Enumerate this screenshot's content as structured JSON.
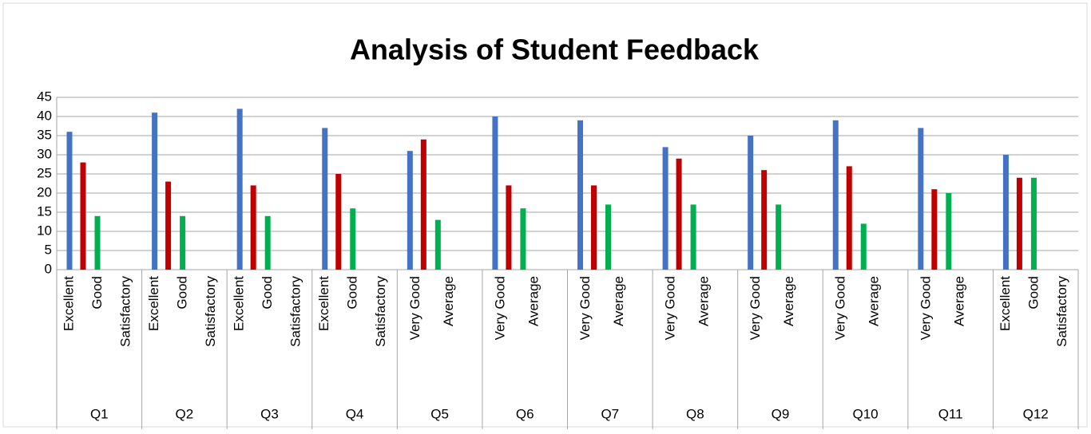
{
  "chart_data": {
    "type": "bar",
    "title": "Analysis of Student Feedback",
    "categories": [
      "Q1",
      "Q2",
      "Q3",
      "Q4",
      "Q5",
      "Q6",
      "Q7",
      "Q8",
      "Q9",
      "Q10",
      "Q11",
      "Q12"
    ],
    "subcategories": [
      [
        "Excellent",
        "Good",
        "Satisfactory"
      ],
      [
        "Excellent",
        "Good",
        "Satisfactory"
      ],
      [
        "Excellent",
        "Good",
        "Satisfactory"
      ],
      [
        "Excellent",
        "Good",
        "Satisfactory"
      ],
      [
        "Very Good",
        "Average"
      ],
      [
        "Very Good",
        "Average"
      ],
      [
        "Very Good",
        "Average"
      ],
      [
        "Very Good",
        "Average"
      ],
      [
        "Very Good",
        "Average"
      ],
      [
        "Very Good",
        "Average"
      ],
      [
        "Very Good",
        "Average"
      ],
      [
        "Excellent",
        "Good",
        "Satisfactory"
      ]
    ],
    "series": [
      {
        "color": "#4472c4",
        "values": [
          36,
          41,
          42,
          37,
          31,
          40,
          39,
          32,
          35,
          39,
          37,
          30
        ]
      },
      {
        "color": "#c00000",
        "values": [
          28,
          23,
          22,
          25,
          34,
          22,
          22,
          29,
          26,
          27,
          21,
          24
        ]
      },
      {
        "color": "#00b050",
        "values": [
          14,
          14,
          14,
          16,
          13,
          16,
          17,
          17,
          17,
          12,
          20,
          24
        ]
      }
    ],
    "ylim": [
      0,
      45
    ],
    "yticks": [
      0,
      5,
      10,
      15,
      20,
      25,
      30,
      35,
      40,
      45
    ],
    "grid": true
  }
}
